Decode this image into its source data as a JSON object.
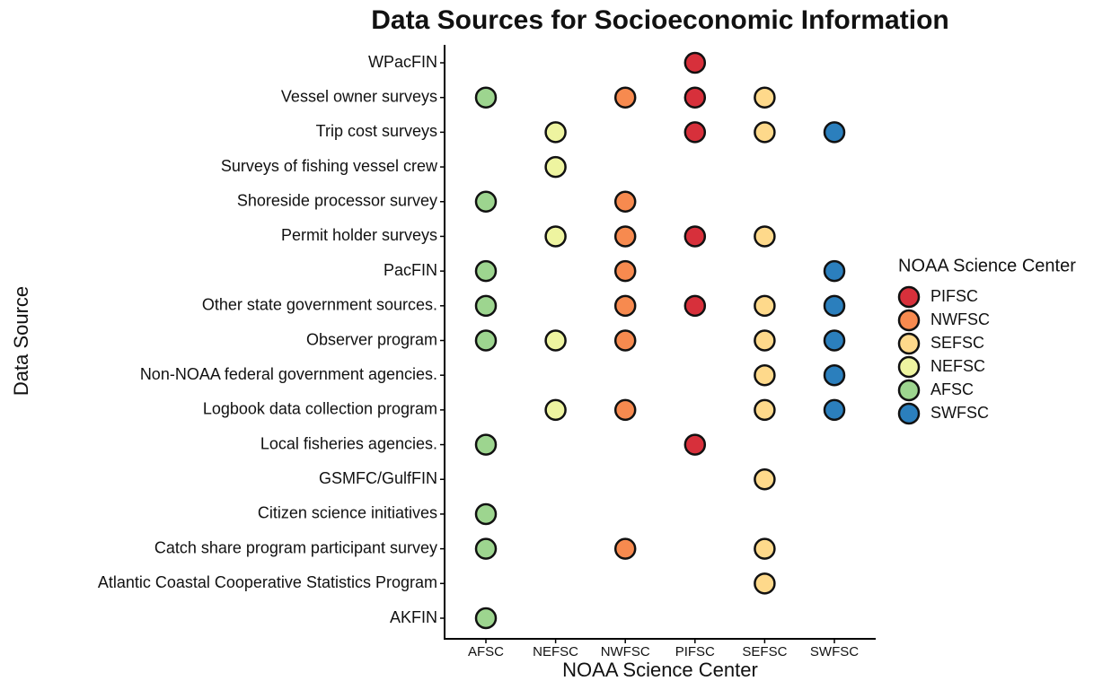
{
  "chart_data": {
    "type": "scatter",
    "title": "Data Sources for Socioeconomic Information",
    "x_label": "NOAA Science Center",
    "y_label": "Data Source",
    "legend_title": "NOAA Science Center",
    "categories": [
      "AFSC",
      "NEFSC",
      "NWFSC",
      "PIFSC",
      "SEFSC",
      "SWFSC"
    ],
    "y_categories": [
      "WPacFIN",
      "Vessel owner surveys",
      "Trip cost surveys",
      "Surveys of fishing vessel crew",
      "Shoreside processor survey",
      "Permit holder surveys",
      "PacFIN",
      "Other state government sources.",
      "Observer program",
      "Non-NOAA federal government agencies.",
      "Logbook data collection program",
      "Local fisheries agencies.",
      "GSMFC/GulfFIN",
      "Citizen science initiatives",
      "Catch share program participant survey",
      "Atlantic Coastal Cooperative Statistics Program",
      "AKFIN"
    ],
    "series": [
      {
        "name": "PIFSC",
        "color": "#d7303b",
        "sources": [
          "WPacFIN",
          "Vessel owner surveys",
          "Trip cost surveys",
          "Permit holder surveys",
          "Other state government sources.",
          "Local fisheries agencies."
        ]
      },
      {
        "name": "NWFSC",
        "color": "#f78a4f",
        "sources": [
          "Vessel owner surveys",
          "Shoreside processor survey",
          "Permit holder surveys",
          "PacFIN",
          "Other state government sources.",
          "Observer program",
          "Logbook data collection program",
          "Catch share program participant survey"
        ]
      },
      {
        "name": "SEFSC",
        "color": "#fed98b",
        "sources": [
          "Vessel owner surveys",
          "Trip cost surveys",
          "Permit holder surveys",
          "Other state government sources.",
          "Observer program",
          "Non-NOAA federal government agencies.",
          "Logbook data collection program",
          "GSMFC/GulfFIN",
          "Catch share program participant survey",
          "Atlantic Coastal Cooperative Statistics Program"
        ]
      },
      {
        "name": "NEFSC",
        "color": "#eef4a0",
        "sources": [
          "Trip cost surveys",
          "Surveys of fishing vessel crew",
          "Permit holder surveys",
          "Observer program",
          "Logbook data collection program"
        ]
      },
      {
        "name": "AFSC",
        "color": "#9dd58f",
        "sources": [
          "Vessel owner surveys",
          "Shoreside processor survey",
          "PacFIN",
          "Other state government sources.",
          "Observer program",
          "Local fisheries agencies.",
          "Citizen science initiatives",
          "Catch share program participant survey",
          "AKFIN"
        ]
      },
      {
        "name": "SWFSC",
        "color": "#2b7fbd",
        "sources": [
          "Trip cost surveys",
          "PacFIN",
          "Other state government sources.",
          "Observer program",
          "Non-NOAA federal government agencies.",
          "Logbook data collection program"
        ]
      }
    ],
    "legend_position": "right"
  }
}
